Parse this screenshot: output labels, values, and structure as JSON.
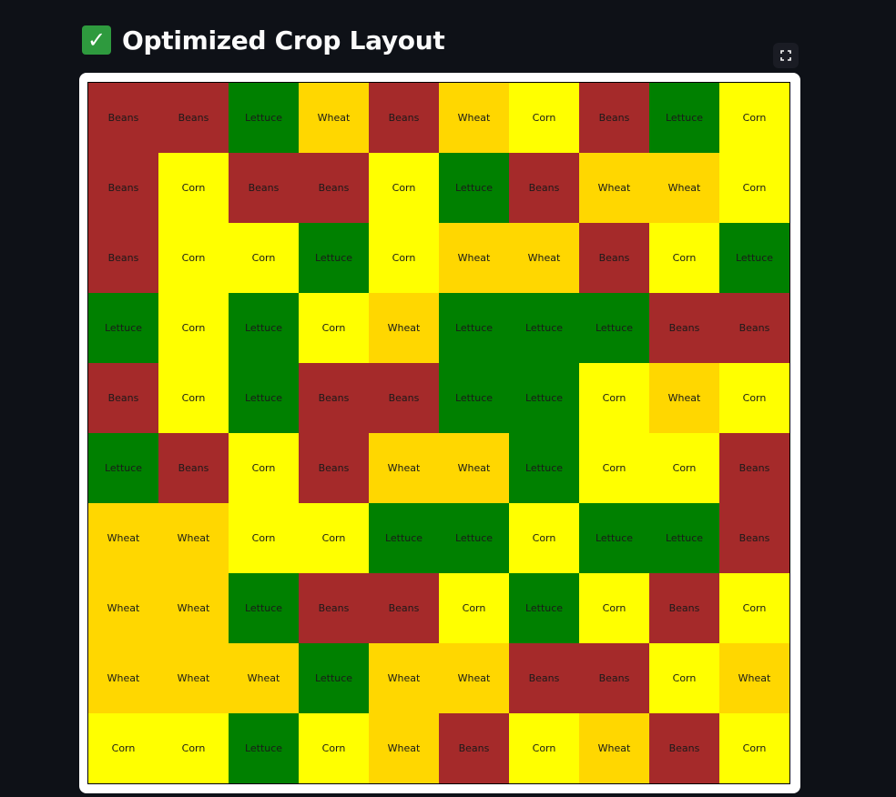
{
  "header": {
    "icon": "check-mark-icon",
    "icon_glyph": "✓",
    "title": "Optimized Crop Layout"
  },
  "toolbar": {
    "fullscreen_icon": "fullscreen-icon"
  },
  "colors": {
    "Beans": "#a52a2a",
    "Lettuce": "#008000",
    "Wheat": "#ffd700",
    "Corn": "#ffff00"
  },
  "layout_grid": {
    "rows": 10,
    "cols": 10,
    "cells": [
      [
        "Beans",
        "Beans",
        "Lettuce",
        "Wheat",
        "Beans",
        "Wheat",
        "Corn",
        "Beans",
        "Lettuce",
        "Corn"
      ],
      [
        "Beans",
        "Corn",
        "Beans",
        "Beans",
        "Corn",
        "Lettuce",
        "Beans",
        "Wheat",
        "Wheat",
        "Corn"
      ],
      [
        "Beans",
        "Corn",
        "Corn",
        "Lettuce",
        "Corn",
        "Wheat",
        "Wheat",
        "Beans",
        "Corn",
        "Lettuce"
      ],
      [
        "Lettuce",
        "Corn",
        "Lettuce",
        "Corn",
        "Wheat",
        "Lettuce",
        "Lettuce",
        "Lettuce",
        "Beans",
        "Beans"
      ],
      [
        "Beans",
        "Corn",
        "Lettuce",
        "Beans",
        "Beans",
        "Lettuce",
        "Lettuce",
        "Corn",
        "Wheat",
        "Corn"
      ],
      [
        "Lettuce",
        "Beans",
        "Corn",
        "Beans",
        "Wheat",
        "Wheat",
        "Lettuce",
        "Corn",
        "Corn",
        "Beans"
      ],
      [
        "Wheat",
        "Wheat",
        "Corn",
        "Corn",
        "Lettuce",
        "Lettuce",
        "Corn",
        "Lettuce",
        "Lettuce",
        "Beans"
      ],
      [
        "Wheat",
        "Wheat",
        "Lettuce",
        "Beans",
        "Beans",
        "Corn",
        "Lettuce",
        "Corn",
        "Beans",
        "Corn"
      ],
      [
        "Wheat",
        "Wheat",
        "Wheat",
        "Lettuce",
        "Wheat",
        "Wheat",
        "Beans",
        "Beans",
        "Corn",
        "Wheat"
      ],
      [
        "Corn",
        "Corn",
        "Lettuce",
        "Corn",
        "Wheat",
        "Beans",
        "Corn",
        "Wheat",
        "Beans",
        "Corn"
      ]
    ]
  }
}
